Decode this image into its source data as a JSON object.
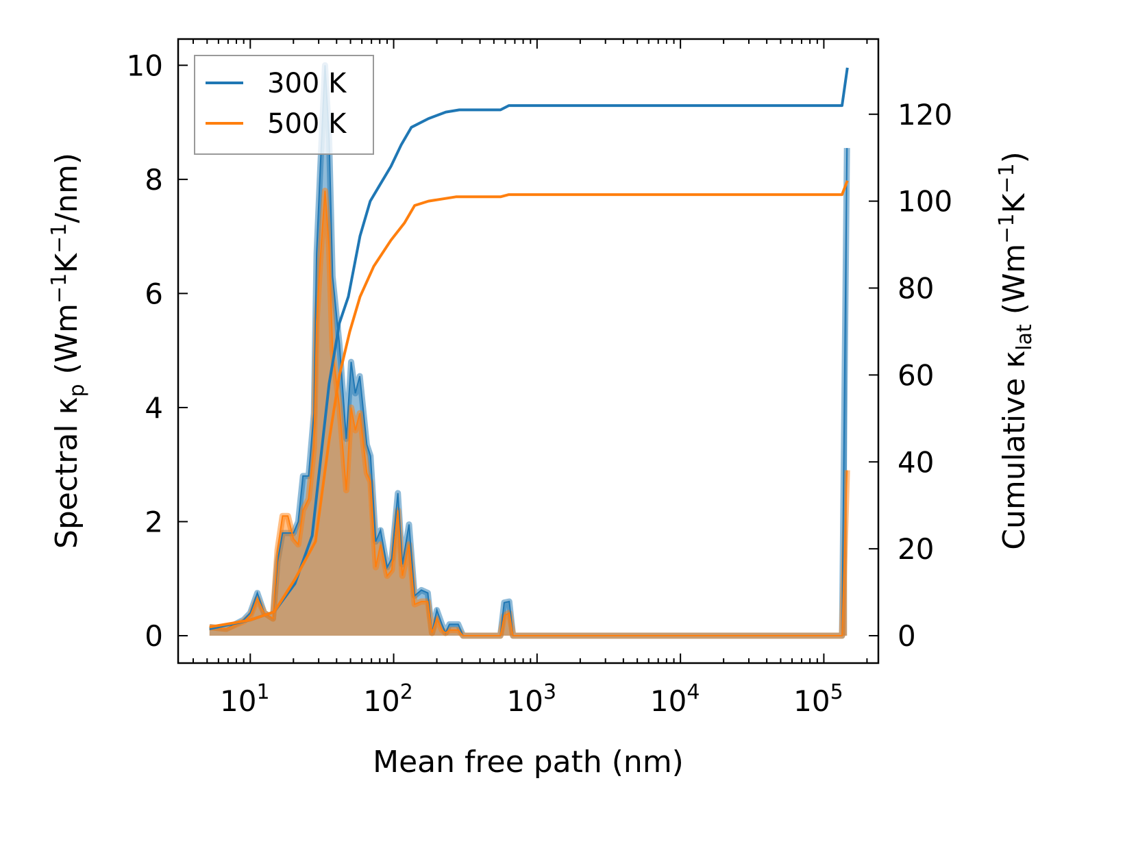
{
  "chart_data": {
    "type": "line",
    "xscale": "log",
    "xlabel": "Mean free path (nm)",
    "ylabel_left": {
      "main": "Spectral κ",
      "sub": "p",
      "unit_open": " (Wm",
      "sup1": "−1",
      "mid": "K",
      "sup2": "−1",
      "unit_close": "/nm)"
    },
    "ylabel_right": {
      "main": "Cumulative κ",
      "sub": "lat",
      "unit_open": " (Wm",
      "sup1": "−1",
      "mid": "K",
      "sup2": "−1",
      "unit_close": ")"
    },
    "xlim": [
      3.14,
      240000
    ],
    "ylim_left": [
      -0.48,
      10.46
    ],
    "ylim_right": [
      -6.3,
      137.3
    ],
    "x_ticks": [
      {
        "base": "10",
        "exp": "1",
        "value": 10
      },
      {
        "base": "10",
        "exp": "2",
        "value": 100
      },
      {
        "base": "10",
        "exp": "3",
        "value": 1000
      },
      {
        "base": "10",
        "exp": "4",
        "value": 10000
      },
      {
        "base": "10",
        "exp": "5",
        "value": 100000
      }
    ],
    "y_ticks_left": [
      "0",
      "2",
      "4",
      "6",
      "8",
      "10"
    ],
    "y_ticks_right": [
      "0",
      "20",
      "40",
      "60",
      "80",
      "100",
      "120"
    ],
    "legend": {
      "placement": "upper-left",
      "entries": [
        "300 K",
        "500 K"
      ]
    },
    "colors": {
      "300 K": "#1f77b4",
      "500 K": "#ff7f0e"
    },
    "spectral": {
      "x": [
        5.2,
        6.8,
        9.0,
        10,
        11.2,
        12.5,
        14.4,
        15.5,
        16.8,
        18.3,
        20,
        21.6,
        23.3,
        25.5,
        27.8,
        29,
        30.8,
        33.2,
        35.5,
        37.5,
        41.9,
        46.7,
        50.5,
        54,
        58,
        65,
        69,
        75,
        81,
        90,
        97,
        107,
        115,
        128,
        140,
        156,
        173,
        185,
        200,
        217,
        230,
        245,
        282,
        305,
        555,
        590,
        640,
        680,
        134000,
        145000
      ],
      "series": [
        {
          "name": "300 K",
          "values": [
            0.15,
            0.12,
            0.28,
            0.4,
            0.75,
            0.4,
            0.3,
            1.3,
            1.8,
            1.8,
            1.8,
            2.0,
            2.8,
            2.8,
            3.9,
            6.7,
            8.2,
            10.0,
            8.7,
            6.3,
            5.1,
            3.45,
            4.8,
            4.25,
            4.55,
            3.35,
            3.15,
            1.65,
            1.85,
            1.2,
            1.35,
            2.5,
            1.25,
            1.95,
            0.7,
            0.8,
            0.75,
            0.05,
            0.45,
            0.2,
            0.05,
            0.2,
            0.2,
            0,
            0,
            0.58,
            0.6,
            0,
            0,
            8.55
          ]
        },
        {
          "name": "500 K",
          "values": [
            0.15,
            0.12,
            0.25,
            0.35,
            0.65,
            0.4,
            0.3,
            1.5,
            2.1,
            2.1,
            1.7,
            1.6,
            2.2,
            2.4,
            3.3,
            5.5,
            6.6,
            7.8,
            6.8,
            5.0,
            4.0,
            2.55,
            4.0,
            3.6,
            3.9,
            2.85,
            2.7,
            1.2,
            1.6,
            1.05,
            1.15,
            2.2,
            1.05,
            1.6,
            0.55,
            0.6,
            0.6,
            0.05,
            0.3,
            0.1,
            0.05,
            0.1,
            0.1,
            0,
            0,
            0.35,
            0.4,
            0,
            0,
            2.9
          ]
        }
      ]
    },
    "cumulative": [
      {
        "name": "300 K",
        "x": [
          5.2,
          10,
          14.7,
          20.5,
          27,
          31.8,
          35.5,
          41.9,
          48.3,
          58.3,
          68.7,
          81,
          95.7,
          113,
          133,
          175,
          231,
          287,
          556,
          636,
          134000,
          146000
        ],
        "values": [
          1.6,
          3.6,
          5.5,
          12,
          23,
          44,
          58,
          72,
          78,
          92,
          100,
          104,
          108,
          113,
          117,
          119,
          120.5,
          121,
          121,
          122,
          122,
          130.7
        ]
      },
      {
        "name": "500 K",
        "x": [
          5.2,
          10,
          14.7,
          20.5,
          28.5,
          35.5,
          41.9,
          49.4,
          58.3,
          72.6,
          95.7,
          119,
          140,
          175,
          272,
          556,
          636,
          134000,
          146000
        ],
        "values": [
          2,
          3.6,
          5.5,
          13,
          21.7,
          45,
          60,
          70,
          78,
          85,
          91,
          95,
          99,
          100,
          101,
          101,
          101.5,
          101.5,
          104.7
        ]
      }
    ]
  }
}
